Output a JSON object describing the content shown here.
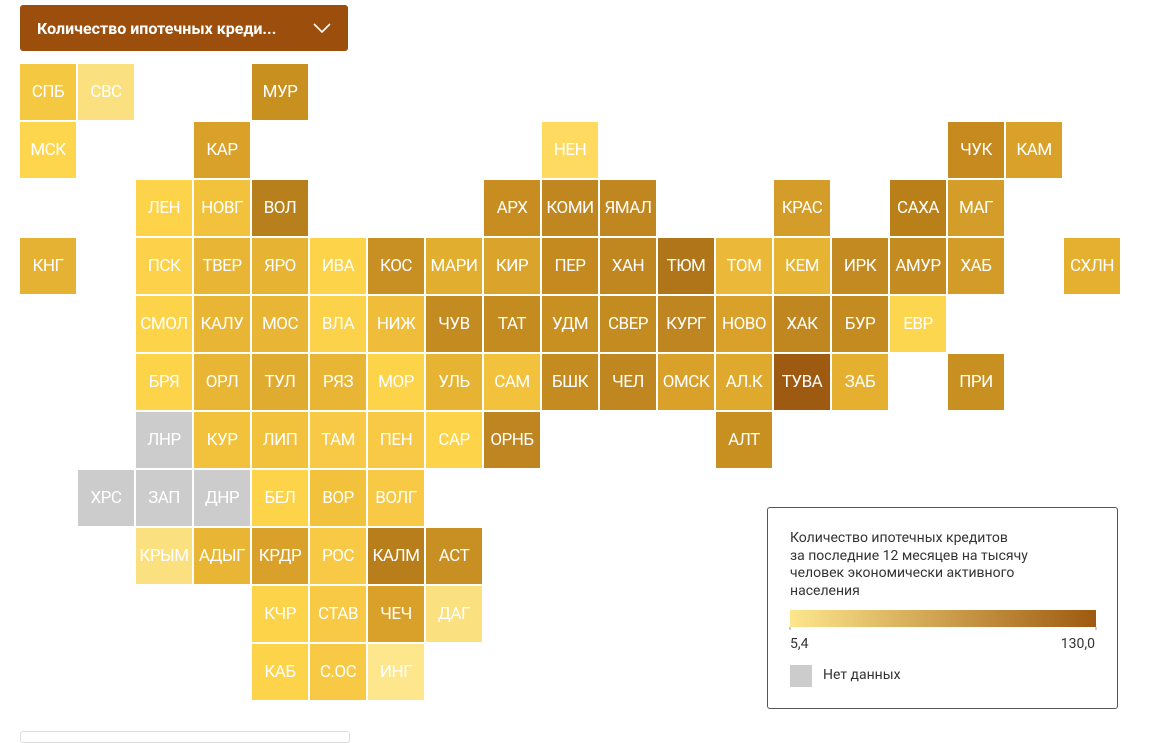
{
  "selector": {
    "label": "Количество ипотечных креди..."
  },
  "regions": [
    {
      "label": "СПБ",
      "color": "#f5c842"
    },
    {
      "label": "СВС",
      "color": "#fbe07f"
    },
    {
      "label": "МУР",
      "color": "#c8901f"
    },
    {
      "label": "МСК",
      "color": "#fdd64e"
    },
    {
      "label": "КАР",
      "color": "#d9a02a"
    },
    {
      "label": "НЕН",
      "color": "#fedb60"
    },
    {
      "label": "ЧУК",
      "color": "#c78a1e"
    },
    {
      "label": "КАМ",
      "color": "#d9a12a"
    },
    {
      "label": "ЛЕН",
      "color": "#fdd34a"
    },
    {
      "label": "НОВГ",
      "color": "#f2c23c"
    },
    {
      "label": "ВОЛ",
      "color": "#b8801c"
    },
    {
      "label": "АРХ",
      "color": "#c88d20"
    },
    {
      "label": "КОМИ",
      "color": "#c08620"
    },
    {
      "label": "ЯМАЛ",
      "color": "#c08620"
    },
    {
      "label": "КРАС",
      "color": "#d49c28"
    },
    {
      "label": "САХА",
      "color": "#b98019"
    },
    {
      "label": "МАГ",
      "color": "#d49c28"
    },
    {
      "label": "КНГ",
      "color": "#e5b234"
    },
    {
      "label": "ПСК",
      "color": "#fdd14a"
    },
    {
      "label": "ТВЕР",
      "color": "#e8b535"
    },
    {
      "label": "ЯРО",
      "color": "#e6b333"
    },
    {
      "label": "ИВА",
      "color": "#fdd34a"
    },
    {
      "label": "КОС",
      "color": "#c88f22"
    },
    {
      "label": "МАРИ",
      "color": "#e2ae30"
    },
    {
      "label": "КИР",
      "color": "#d9a32c"
    },
    {
      "label": "ПЕР",
      "color": "#c48a20"
    },
    {
      "label": "ХАН",
      "color": "#c08620"
    },
    {
      "label": "ТЮМ",
      "color": "#b07518"
    },
    {
      "label": "ТОМ",
      "color": "#ecb83a"
    },
    {
      "label": "КЕМ",
      "color": "#e6b333"
    },
    {
      "label": "ИРК",
      "color": "#c28a20"
    },
    {
      "label": "АМУР",
      "color": "#c48b20"
    },
    {
      "label": "ХАБ",
      "color": "#d39b28"
    },
    {
      "label": "СХЛН",
      "color": "#e5b030"
    },
    {
      "label": "СМОЛ",
      "color": "#fdd34a"
    },
    {
      "label": "КАЛУ",
      "color": "#e8b535"
    },
    {
      "label": "МОС",
      "color": "#e8b535"
    },
    {
      "label": "ВЛА",
      "color": "#fdd24b"
    },
    {
      "label": "НИЖ",
      "color": "#f0bd3a"
    },
    {
      "label": "ЧУВ",
      "color": "#c48b20"
    },
    {
      "label": "ТАТ",
      "color": "#c48b20"
    },
    {
      "label": "УДМ",
      "color": "#c89020"
    },
    {
      "label": "СВЕР",
      "color": "#c48b20"
    },
    {
      "label": "КУРГ",
      "color": "#be8520"
    },
    {
      "label": "НОВО",
      "color": "#d9a12a"
    },
    {
      "label": "ХАК",
      "color": "#c08620"
    },
    {
      "label": "БУР",
      "color": "#c48b20"
    },
    {
      "label": "ЕВР",
      "color": "#fdd650"
    },
    {
      "label": "БРЯ",
      "color": "#fdd34a"
    },
    {
      "label": "ОРЛ",
      "color": "#e8b535"
    },
    {
      "label": "ТУЛ",
      "color": "#e0ac30"
    },
    {
      "label": "РЯЗ",
      "color": "#e8b535"
    },
    {
      "label": "МОР",
      "color": "#fdd34a"
    },
    {
      "label": "УЛЬ",
      "color": "#e6b333"
    },
    {
      "label": "САМ",
      "color": "#f2c23c"
    },
    {
      "label": "БШК",
      "color": "#c48b20"
    },
    {
      "label": "ЧЕЛ",
      "color": "#c08620"
    },
    {
      "label": "ОМСК",
      "color": "#d9a12a"
    },
    {
      "label": "АЛ.К",
      "color": "#dfa92e"
    },
    {
      "label": "ТУВА",
      "color": "#9e5a10"
    },
    {
      "label": "ЗАБ",
      "color": "#e5b030"
    },
    {
      "label": "ПРИ",
      "color": "#c89020"
    },
    {
      "label": "ЛНР",
      "color": "#cccccc"
    },
    {
      "label": "КУР",
      "color": "#f2c23c"
    },
    {
      "label": "ЛИП",
      "color": "#f2c23c"
    },
    {
      "label": "ТАМ",
      "color": "#f8c945"
    },
    {
      "label": "ПЕН",
      "color": "#f8c945"
    },
    {
      "label": "САР",
      "color": "#fdd34a"
    },
    {
      "label": "ОРНБ",
      "color": "#be8520"
    },
    {
      "label": "АЛТ",
      "color": "#c89020"
    },
    {
      "label": "ХРС",
      "color": "#cccccc"
    },
    {
      "label": "ЗАП",
      "color": "#cccccc"
    },
    {
      "label": "ДНР",
      "color": "#cccccc"
    },
    {
      "label": "БЕЛ",
      "color": "#fdd34a"
    },
    {
      "label": "ВОР",
      "color": "#f2c23c"
    },
    {
      "label": "ВОЛГ",
      "color": "#f8c945"
    },
    {
      "label": "КРЫМ",
      "color": "#fbe07f"
    },
    {
      "label": "АДЫГ",
      "color": "#e8b535"
    },
    {
      "label": "КРДР",
      "color": "#d9a12a"
    },
    {
      "label": "РОС",
      "color": "#f8c945"
    },
    {
      "label": "КАЛМ",
      "color": "#b87e1c"
    },
    {
      "label": "АСТ",
      "color": "#c88f22"
    },
    {
      "label": "КЧР",
      "color": "#fdd34a"
    },
    {
      "label": "СТАВ",
      "color": "#f8c945"
    },
    {
      "label": "ЧЕЧ",
      "color": "#d9a12a"
    },
    {
      "label": "ДАГ",
      "color": "#fbe07f"
    },
    {
      "label": "КАБ",
      "color": "#fdd34a"
    },
    {
      "label": "С.ОС",
      "color": "#f8c945"
    },
    {
      "label": "ИНГ",
      "color": "#fde68c"
    }
  ],
  "legend": {
    "title": [
      "Количество ипотечных кредитов",
      "за последние 12 месяцев на тысячу",
      "человек экономически активного",
      "населения"
    ],
    "min": {
      "value": 5.4,
      "label": "5,4"
    },
    "max": {
      "value": 130.0,
      "label": "130,0"
    },
    "colors": [
      "#fde68c",
      "#9e5a10"
    ],
    "no_data": {
      "label": "Нет данных",
      "color": "#cccccc"
    }
  }
}
